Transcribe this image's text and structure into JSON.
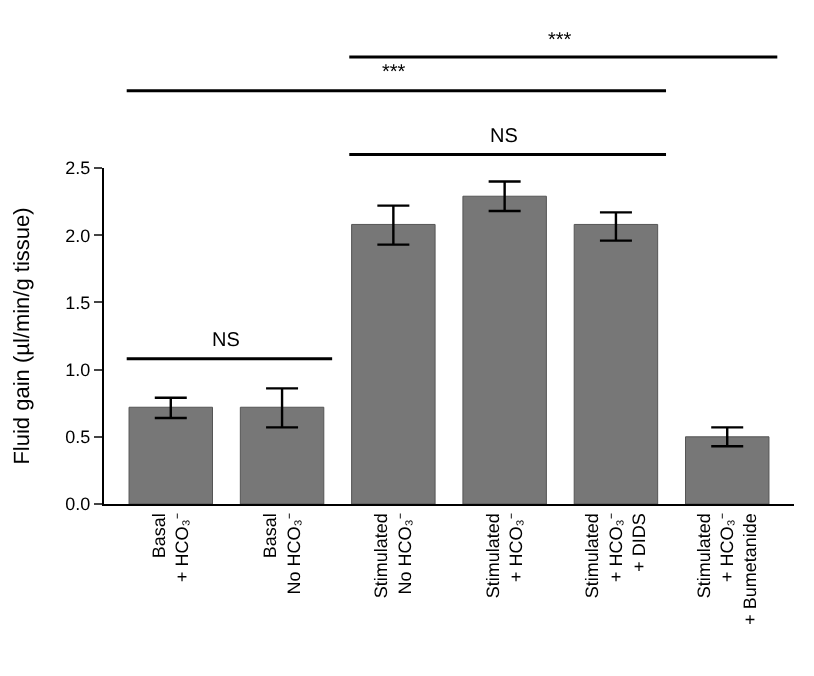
{
  "chart_data": {
    "type": "bar",
    "ylabel": "Fluid gain (µl/min/g tissue)",
    "categories": [
      "Basal\n+ HCO₃⁻",
      "Basal\nNo HCO₃⁻",
      "Stimulated\nNo HCO₃⁻",
      "Stimulated\n+ HCO₃⁻",
      "Stimulated\n+ HCO₃⁻\n+ DIDS",
      "Stimulated\n+ HCO₃⁻\n+ Bumetanide"
    ],
    "values": [
      0.72,
      0.72,
      2.08,
      2.29,
      2.08,
      0.5
    ],
    "errors": [
      [
        0.64,
        0.79
      ],
      [
        0.57,
        0.86
      ],
      [
        1.93,
        2.22
      ],
      [
        2.18,
        2.4
      ],
      [
        1.96,
        2.17
      ],
      [
        0.43,
        0.57
      ]
    ],
    "color": "#777777",
    "ylim": [
      0,
      2.5
    ],
    "yticks": [
      {
        "value": 0,
        "label": "0.0"
      },
      {
        "value": 0.5,
        "label": "0.5"
      },
      {
        "value": 1,
        "label": "1.0"
      },
      {
        "value": 1.5,
        "label": "1.5"
      },
      {
        "value": 2,
        "label": "2.0"
      },
      {
        "value": 2.5,
        "label": "2.5"
      }
    ],
    "annotations": [
      "NS",
      "NS",
      "***",
      "***"
    ]
  }
}
